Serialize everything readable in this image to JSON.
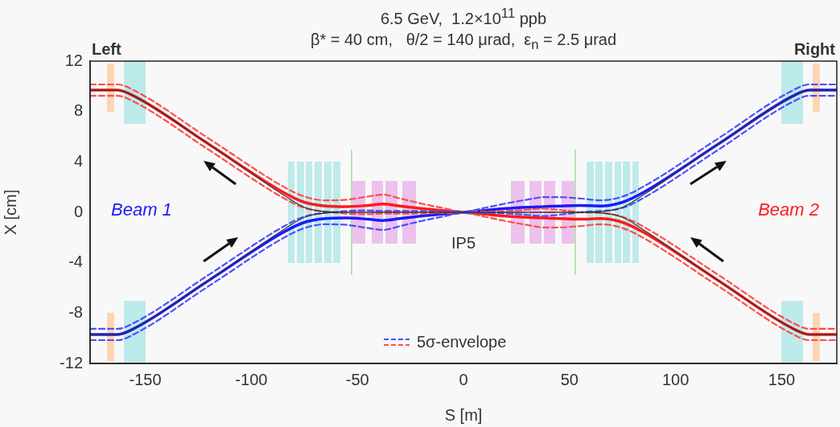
{
  "chart_data": {
    "type": "line",
    "title": "6.5 GeV,  1.2×10$^{11}$ ppb",
    "subtitle": "β* = 40 cm,   θ/2 = 140 μrad,  ε$_{n}$ = 2.5 μrad",
    "xlabel": "S [m]",
    "ylabel": "X [cm]",
    "x": [
      -176,
      -163,
      -155,
      -120,
      -85,
      -75,
      -65,
      -55,
      -45,
      -38,
      -30,
      -20,
      -10,
      0,
      10,
      20,
      30,
      38,
      45,
      55,
      65,
      75,
      85,
      120,
      155,
      163,
      176
    ],
    "xlim": [
      -176,
      176
    ],
    "xticks": [
      -150,
      -100,
      -50,
      0,
      50,
      100,
      150
    ],
    "ylim": [
      -12,
      12
    ],
    "yticks": [
      -12,
      -8,
      -4,
      0,
      4,
      8,
      12
    ],
    "legend": "bottom",
    "annotations": [
      "Left",
      "IP5",
      "Right"
    ],
    "series": [
      {
        "color": "#333333",
        "line_style": "solid",
        "values": [
          9.7,
          9.7,
          9.2,
          5.4,
          1.4,
          0.4,
          0.05,
          0,
          0,
          0,
          0,
          0,
          0,
          0,
          0,
          0,
          0,
          0,
          0,
          0,
          0.05,
          0.4,
          1.4,
          5.4,
          9.2,
          9.7,
          9.7
        ]
      },
      {
        "color": "#333333",
        "line_style": "solid",
        "values": [
          -9.7,
          -9.7,
          -9.2,
          -5.4,
          -1.4,
          -0.4,
          -0.05,
          0,
          0,
          0,
          0,
          0,
          0,
          0,
          0,
          0,
          0,
          0,
          0,
          0,
          -0.05,
          -0.4,
          -1.4,
          -5.4,
          -9.2,
          -9.7,
          -9.7
        ]
      },
      {
        "name": "5σ-envelope",
        "color": "#4d4dff",
        "line_style": "dashed",
        "values": [
          -9.25,
          -9.25,
          -8.75,
          -4.95,
          -1.15,
          -0.35,
          null,
          0.1,
          0.15,
          0.1,
          0.1,
          0.1,
          0.05,
          0.05,
          0.35,
          0.7,
          1.0,
          1.2,
          1.2,
          1.1,
          0.95,
          1.25,
          2.05,
          5.85,
          9.65,
          10.15,
          10.15
        ]
      },
      {
        "color": "#4d4dff",
        "line_style": "dashed",
        "values": [
          -10.15,
          -10.15,
          -9.65,
          -5.85,
          -2.05,
          -1.25,
          -0.95,
          -1.0,
          -1.25,
          -1.4,
          -1.1,
          -0.7,
          -0.35,
          -0.05,
          -0.05,
          -0.1,
          -0.2,
          -0.3,
          -0.2,
          0.0,
          null,
          0.35,
          1.15,
          4.95,
          8.75,
          9.25,
          9.25
        ]
      },
      {
        "color": "#ff4d4d",
        "line_style": "dashed",
        "values": [
          10.15,
          10.15,
          9.65,
          5.85,
          2.05,
          1.25,
          0.95,
          1.0,
          1.25,
          1.4,
          1.1,
          0.7,
          0.35,
          0.05,
          0.05,
          0.1,
          0.2,
          0.3,
          0.2,
          0.0,
          -0.05,
          -0.35,
          -1.15,
          -4.95,
          -8.75,
          -9.25,
          -9.25
        ]
      },
      {
        "color": "#ff4d4d",
        "line_style": "dashed",
        "values": [
          9.25,
          9.25,
          8.75,
          4.95,
          1.15,
          0.35,
          null,
          -0.1,
          -0.15,
          -0.1,
          -0.1,
          -0.1,
          -0.05,
          -0.05,
          -0.35,
          -0.7,
          -1.0,
          -1.2,
          -1.2,
          -1.1,
          -0.95,
          -1.25,
          -2.05,
          -5.85,
          -9.65,
          -10.15,
          -10.15
        ]
      },
      {
        "name": "Beam 1",
        "color": "#1a1aff",
        "line_style": "solid",
        "values": [
          -9.7,
          -9.7,
          -9.2,
          -5.4,
          -1.6,
          -0.8,
          -0.5,
          -0.45,
          -0.55,
          -0.65,
          -0.5,
          -0.3,
          -0.15,
          0,
          0.15,
          0.3,
          0.4,
          0.45,
          0.5,
          0.55,
          0.5,
          0.8,
          1.6,
          5.4,
          9.2,
          9.7,
          9.7
        ]
      },
      {
        "name": "Beam 2",
        "color": "#ff1a1a",
        "line_style": "solid",
        "values": [
          9.7,
          9.7,
          9.2,
          5.4,
          1.6,
          0.8,
          0.5,
          0.45,
          0.55,
          0.65,
          0.5,
          0.3,
          0.15,
          0,
          -0.15,
          -0.3,
          -0.4,
          -0.45,
          -0.5,
          -0.55,
          -0.5,
          -0.8,
          -1.6,
          -5.4,
          -9.2,
          -9.7,
          -9.7
        ]
      }
    ]
  }
}
